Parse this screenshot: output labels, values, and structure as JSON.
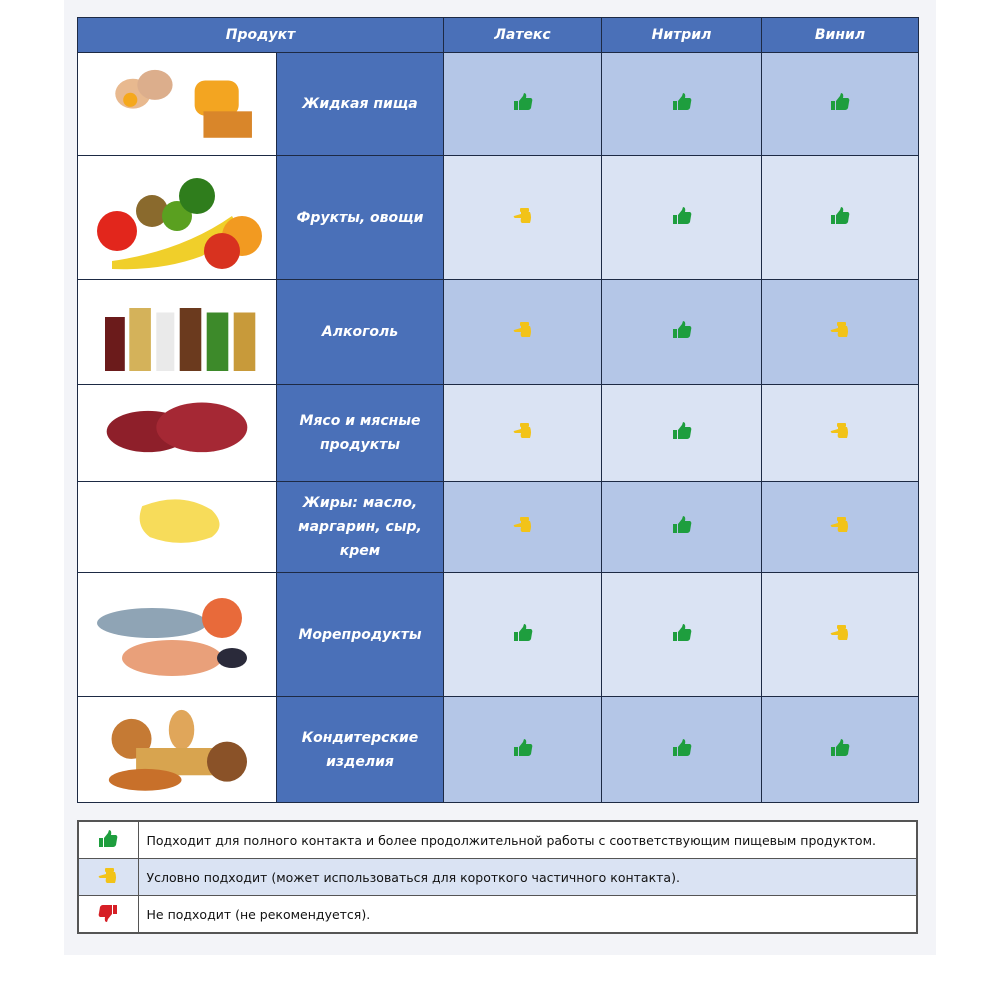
{
  "header": {
    "product": "Продукт",
    "columns": [
      "Латекс",
      "Нитрил",
      "Винил"
    ]
  },
  "rows": [
    {
      "name": "Жидкая пища",
      "image": "eggs-honey",
      "ratings": [
        "good",
        "good",
        "good"
      ]
    },
    {
      "name": "Фрукты, овощи",
      "image": "fruits-vegetables",
      "ratings": [
        "conditional",
        "good",
        "good"
      ]
    },
    {
      "name": "Алкоголь",
      "image": "bottles",
      "ratings": [
        "conditional",
        "good",
        "conditional"
      ]
    },
    {
      "name": "Мясо и мясные продукты",
      "image": "meat",
      "ratings": [
        "conditional",
        "good",
        "conditional"
      ]
    },
    {
      "name": "Жиры: масло, маргарин, сыр, крем",
      "image": "butter",
      "ratings": [
        "conditional",
        "good",
        "conditional"
      ]
    },
    {
      "name": "Морепродукты",
      "image": "seafood",
      "ratings": [
        "good",
        "good",
        "conditional"
      ]
    },
    {
      "name": "Кондитерские изделия",
      "image": "pastry",
      "ratings": [
        "good",
        "good",
        "good"
      ]
    }
  ],
  "legend": [
    {
      "icon": "thumbs-up-green",
      "text": "Подходит для полного контакта и более продолжительной работы с соответствующим пищевым продуктом."
    },
    {
      "icon": "pointing-hand-yellow",
      "text": "Условно подходит (может использоваться для короткого частичного контакта)."
    },
    {
      "icon": "thumbs-down-red",
      "text": "Не подходит (не рекомендуется)."
    }
  ],
  "colors": {
    "header": "#4a70b8",
    "row_dark": "#b4c6e7",
    "row_light": "#dae3f3",
    "good": "#1e9e3e",
    "conditional": "#f2c318",
    "bad": "#d61f26"
  }
}
